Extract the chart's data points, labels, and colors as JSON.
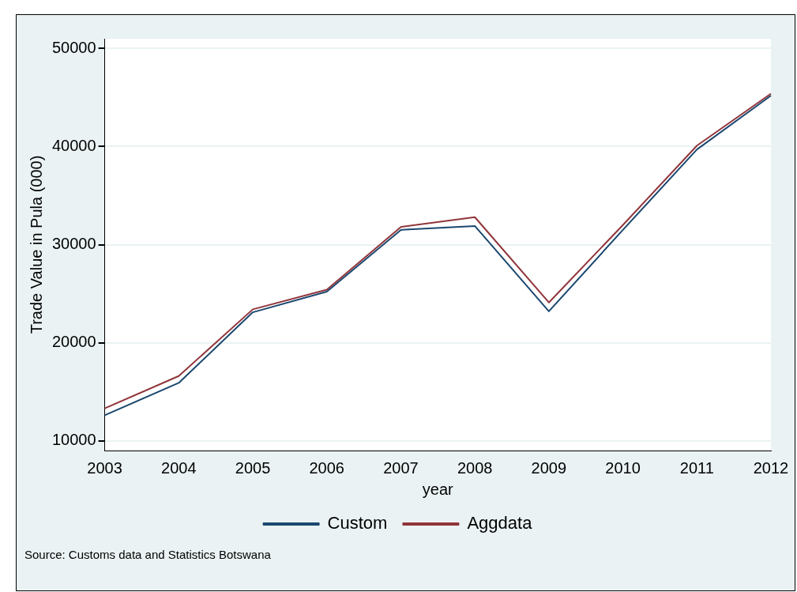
{
  "chart_data": {
    "type": "line",
    "xlabel": "year",
    "ylabel": "Trade Value in Pula (000)",
    "categories": [
      "2003",
      "2004",
      "2005",
      "2006",
      "2007",
      "2008",
      "2009",
      "2010",
      "2011",
      "2012"
    ],
    "series": [
      {
        "name": "Custom",
        "color": "#1a476f",
        "values": [
          12600,
          15900,
          23100,
          25200,
          31500,
          31900,
          23200,
          31500,
          39700,
          45200
        ]
      },
      {
        "name": "Aggdata",
        "color": "#90353b",
        "values": [
          13300,
          16600,
          23400,
          25400,
          31800,
          32800,
          24100,
          32000,
          40100,
          45400
        ]
      }
    ],
    "ylim": [
      9000,
      51000
    ],
    "yticks": [
      10000,
      20000,
      30000,
      40000,
      50000
    ],
    "grid": "y",
    "legend": "bottom",
    "marker": "none",
    "line_style": "solid",
    "annotations": [
      "Source: Customs data and Statistics Botswana"
    ]
  }
}
